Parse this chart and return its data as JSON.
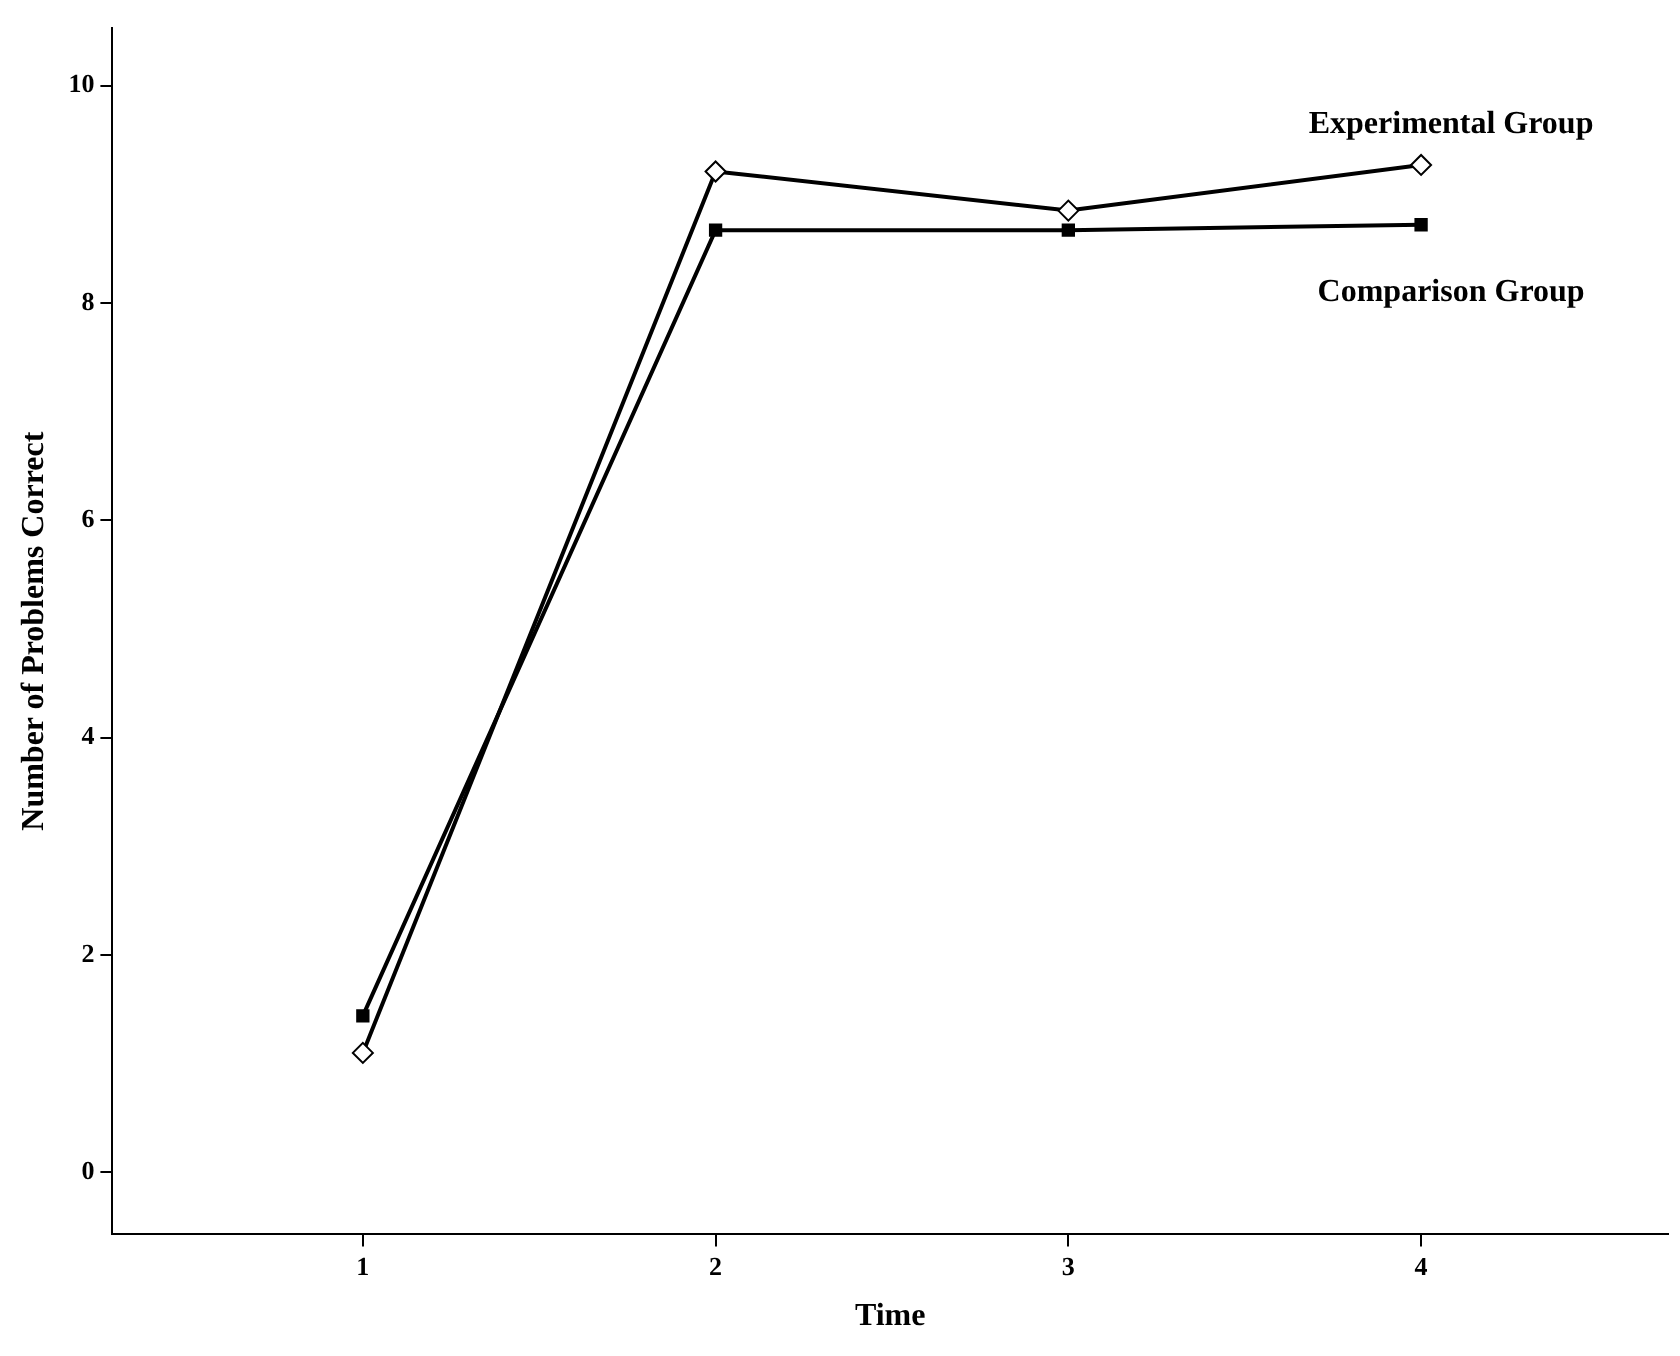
{
  "chart_data": {
    "type": "line",
    "xlabel": "Time",
    "ylabel": "Number of Problems Correct",
    "x": [
      1,
      2,
      3,
      4
    ],
    "series": [
      {
        "name": "Experimental Group",
        "color": "#000000",
        "marker": "diamond",
        "values": [
          1.1,
          9.21,
          8.85,
          9.27
        ]
      },
      {
        "name": "Comparison Group",
        "color": "#000000",
        "marker": "square",
        "values": [
          1.44,
          8.67,
          8.67,
          8.72
        ]
      }
    ],
    "xlim": [
      0.29,
      4.7
    ],
    "xticks": [
      1,
      2,
      3,
      4
    ],
    "ylim": [
      -0.57,
      10.53
    ],
    "yticks": [
      0,
      2,
      4,
      6,
      8,
      10
    ],
    "grid": false,
    "legend": false
  }
}
